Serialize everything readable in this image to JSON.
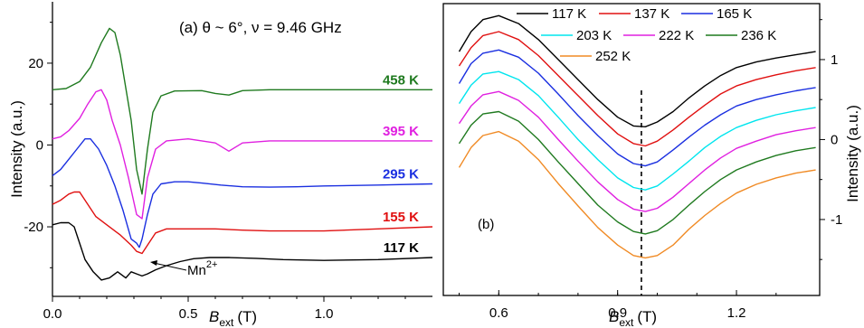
{
  "chart_data": [
    {
      "panel": "a",
      "type": "line",
      "title": "(a) θ ~ 6°, ν = 9.46 GHz",
      "xlabel": "B",
      "xlabel_sub": "ext",
      "xlabel_unit": "(T)",
      "ylabel": "Intensity (a.u.)",
      "xlim": [
        0,
        1.4
      ],
      "ylim": [
        -37,
        35
      ],
      "xticks": [
        {
          "v": 0.0,
          "label": "0.0"
        },
        {
          "v": 0.5,
          "label": "0.5"
        },
        {
          "v": 1.0,
          "label": "1.0"
        }
      ],
      "yticks": [
        {
          "v": 20,
          "label": "20"
        },
        {
          "v": 0,
          "label": "0"
        },
        {
          "v": -20,
          "label": "-20"
        }
      ],
      "annotation": {
        "text": "Mn",
        "sup": "2+",
        "x": 0.33,
        "y": -30.5
      },
      "series": [
        {
          "name": "458 K",
          "color": "#1f7a1f",
          "x": [
            0.0,
            0.05,
            0.1,
            0.14,
            0.18,
            0.21,
            0.23,
            0.25,
            0.27,
            0.29,
            0.31,
            0.33,
            0.35,
            0.37,
            0.4,
            0.45,
            0.55,
            0.6,
            0.65,
            0.7,
            0.8,
            1.0,
            1.2,
            1.4
          ],
          "y": [
            13.5,
            13.8,
            15.5,
            19,
            25,
            28.5,
            27.5,
            22,
            14,
            6,
            -6,
            -12,
            -1,
            8,
            12,
            13.2,
            13.3,
            12.6,
            12.2,
            13.3,
            13.5,
            13.5,
            13.5,
            13.5
          ]
        },
        {
          "name": "395 K",
          "color": "#e020e0",
          "x": [
            0.0,
            0.03,
            0.06,
            0.1,
            0.13,
            0.16,
            0.18,
            0.2,
            0.22,
            0.25,
            0.28,
            0.31,
            0.33,
            0.35,
            0.38,
            0.42,
            0.5,
            0.6,
            0.65,
            0.7,
            0.8,
            1.0,
            1.2,
            1.4
          ],
          "y": [
            1.5,
            2,
            3.5,
            6.5,
            10,
            13,
            13.5,
            11,
            6,
            0,
            -8,
            -17,
            -18,
            -8,
            -1,
            1,
            1.5,
            0.5,
            -1.5,
            0.5,
            1,
            1,
            1,
            1
          ]
        },
        {
          "name": "295 K",
          "color": "#1a2fe0",
          "x": [
            0.0,
            0.03,
            0.06,
            0.09,
            0.12,
            0.14,
            0.17,
            0.2,
            0.23,
            0.26,
            0.29,
            0.31,
            0.32,
            0.33,
            0.35,
            0.37,
            0.4,
            0.45,
            0.5,
            0.55,
            0.62,
            0.7,
            0.8,
            0.9,
            1.0,
            1.2,
            1.4
          ],
          "y": [
            -7.5,
            -6,
            -3.5,
            -1,
            1.5,
            1.5,
            -1,
            -5,
            -10,
            -16,
            -23,
            -24,
            -25,
            -23,
            -17,
            -12,
            -9.5,
            -9,
            -9,
            -9.3,
            -9.8,
            -10.2,
            -10.3,
            -10.2,
            -10,
            -9.8,
            -9.5
          ]
        },
        {
          "name": "155 K",
          "color": "#e01010",
          "x": [
            0.0,
            0.03,
            0.06,
            0.08,
            0.1,
            0.13,
            0.16,
            0.2,
            0.25,
            0.29,
            0.31,
            0.33,
            0.35,
            0.38,
            0.42,
            0.5,
            0.6,
            0.7,
            0.8,
            1.0,
            1.2,
            1.4
          ],
          "y": [
            -14.5,
            -13.5,
            -12,
            -11.5,
            -11.5,
            -14.5,
            -17.5,
            -19.5,
            -22,
            -24.5,
            -26,
            -26.5,
            -24.5,
            -21.5,
            -20.5,
            -20.5,
            -20.5,
            -20.8,
            -21,
            -21,
            -20.5,
            -20
          ]
        },
        {
          "name": "117 K",
          "color": "#000000",
          "x": [
            0.0,
            0.03,
            0.06,
            0.08,
            0.1,
            0.12,
            0.15,
            0.18,
            0.21,
            0.24,
            0.27,
            0.29,
            0.31,
            0.33,
            0.35,
            0.38,
            0.42,
            0.47,
            0.52,
            0.58,
            0.65,
            0.75,
            0.85,
            1.0,
            1.2,
            1.4
          ],
          "y": [
            -19.5,
            -19,
            -19,
            -20,
            -24,
            -28,
            -31,
            -33,
            -32.5,
            -31,
            -32.5,
            -31,
            -31.5,
            -32,
            -31.5,
            -30.5,
            -29.5,
            -28.5,
            -27.8,
            -27.5,
            -27.5,
            -27.7,
            -28,
            -28.2,
            -28,
            -27.5
          ]
        }
      ]
    },
    {
      "panel": "b",
      "type": "line",
      "label": "(b)",
      "xlabel": "B",
      "xlabel_sub": "ext",
      "xlabel_unit": "(T)",
      "ylabel": "Intensity (a.u.)",
      "xlim": [
        0.46,
        1.41
      ],
      "ylim": [
        -1.95,
        1.7
      ],
      "xticks": [
        {
          "v": 0.6,
          "label": "0.6"
        },
        {
          "v": 0.9,
          "label": "0.9"
        },
        {
          "v": 1.2,
          "label": "1.2"
        }
      ],
      "yticks": [
        {
          "v": 1,
          "label": "1"
        },
        {
          "v": 0,
          "label": "0"
        },
        {
          "v": -1,
          "label": "-1"
        }
      ],
      "vline_x": 0.96,
      "legend": "top",
      "series": [
        {
          "name": "117 K",
          "color": "#000000",
          "x": [
            0.5,
            0.53,
            0.56,
            0.6,
            0.65,
            0.7,
            0.75,
            0.8,
            0.85,
            0.9,
            0.94,
            0.97,
            1.0,
            1.04,
            1.08,
            1.12,
            1.16,
            1.2,
            1.25,
            1.3,
            1.35,
            1.4
          ],
          "y": [
            1.1,
            1.35,
            1.5,
            1.55,
            1.45,
            1.25,
            1.0,
            0.75,
            0.5,
            0.28,
            0.17,
            0.16,
            0.22,
            0.35,
            0.52,
            0.67,
            0.8,
            0.9,
            0.97,
            1.02,
            1.06,
            1.1
          ]
        },
        {
          "name": "137 K",
          "color": "#e01010",
          "x": [
            0.5,
            0.53,
            0.56,
            0.6,
            0.65,
            0.7,
            0.75,
            0.8,
            0.85,
            0.9,
            0.94,
            0.97,
            1.0,
            1.04,
            1.08,
            1.12,
            1.16,
            1.2,
            1.25,
            1.3,
            1.35,
            1.4
          ],
          "y": [
            0.92,
            1.15,
            1.3,
            1.35,
            1.25,
            1.05,
            0.8,
            0.55,
            0.3,
            0.07,
            -0.05,
            -0.08,
            -0.02,
            0.12,
            0.28,
            0.43,
            0.57,
            0.67,
            0.75,
            0.81,
            0.86,
            0.9
          ]
        },
        {
          "name": "165 K",
          "color": "#1a2fe0",
          "x": [
            0.5,
            0.53,
            0.56,
            0.6,
            0.65,
            0.7,
            0.75,
            0.8,
            0.85,
            0.9,
            0.94,
            0.97,
            1.0,
            1.04,
            1.08,
            1.12,
            1.16,
            1.2,
            1.25,
            1.3,
            1.35,
            1.4
          ],
          "y": [
            0.7,
            0.95,
            1.08,
            1.12,
            1.03,
            0.83,
            0.57,
            0.3,
            0.05,
            -0.18,
            -0.3,
            -0.33,
            -0.28,
            -0.13,
            0.03,
            0.18,
            0.31,
            0.42,
            0.5,
            0.56,
            0.61,
            0.65
          ]
        },
        {
          "name": "203 K",
          "color": "#00e5ee",
          "x": [
            0.5,
            0.53,
            0.56,
            0.6,
            0.65,
            0.7,
            0.75,
            0.8,
            0.85,
            0.9,
            0.94,
            0.97,
            1.0,
            1.04,
            1.08,
            1.12,
            1.16,
            1.2,
            1.25,
            1.3,
            1.35,
            1.4
          ],
          "y": [
            0.45,
            0.68,
            0.82,
            0.85,
            0.75,
            0.55,
            0.28,
            0.0,
            -0.25,
            -0.48,
            -0.6,
            -0.63,
            -0.58,
            -0.43,
            -0.27,
            -0.1,
            0.04,
            0.15,
            0.24,
            0.31,
            0.36,
            0.4
          ]
        },
        {
          "name": "222 K",
          "color": "#e020e0",
          "x": [
            0.5,
            0.53,
            0.56,
            0.6,
            0.65,
            0.7,
            0.75,
            0.8,
            0.85,
            0.9,
            0.94,
            0.97,
            1.0,
            1.04,
            1.08,
            1.12,
            1.16,
            1.2,
            1.25,
            1.3,
            1.35,
            1.4
          ],
          "y": [
            0.2,
            0.42,
            0.56,
            0.6,
            0.49,
            0.28,
            0.0,
            -0.27,
            -0.53,
            -0.75,
            -0.87,
            -0.9,
            -0.86,
            -0.72,
            -0.55,
            -0.38,
            -0.23,
            -0.11,
            -0.02,
            0.06,
            0.11,
            0.15
          ]
        },
        {
          "name": "236 K",
          "color": "#1f7a1f",
          "x": [
            0.5,
            0.53,
            0.56,
            0.6,
            0.65,
            0.7,
            0.75,
            0.8,
            0.85,
            0.9,
            0.94,
            0.97,
            1.0,
            1.04,
            1.08,
            1.12,
            1.16,
            1.2,
            1.25,
            1.3,
            1.35,
            1.4
          ],
          "y": [
            -0.05,
            0.18,
            0.32,
            0.35,
            0.23,
            0.0,
            -0.28,
            -0.55,
            -0.82,
            -1.03,
            -1.15,
            -1.18,
            -1.14,
            -1.0,
            -0.82,
            -0.65,
            -0.5,
            -0.38,
            -0.28,
            -0.2,
            -0.14,
            -0.1
          ]
        },
        {
          "name": "252 K",
          "color": "#f08a24",
          "x": [
            0.5,
            0.53,
            0.56,
            0.6,
            0.65,
            0.7,
            0.75,
            0.8,
            0.85,
            0.9,
            0.94,
            0.97,
            1.0,
            1.04,
            1.08,
            1.12,
            1.16,
            1.2,
            1.25,
            1.3,
            1.35,
            1.4
          ],
          "y": [
            -0.35,
            -0.1,
            0.05,
            0.1,
            -0.02,
            -0.25,
            -0.55,
            -0.83,
            -1.1,
            -1.32,
            -1.45,
            -1.48,
            -1.45,
            -1.32,
            -1.12,
            -0.95,
            -0.8,
            -0.67,
            -0.56,
            -0.48,
            -0.42,
            -0.38
          ]
        }
      ]
    }
  ]
}
